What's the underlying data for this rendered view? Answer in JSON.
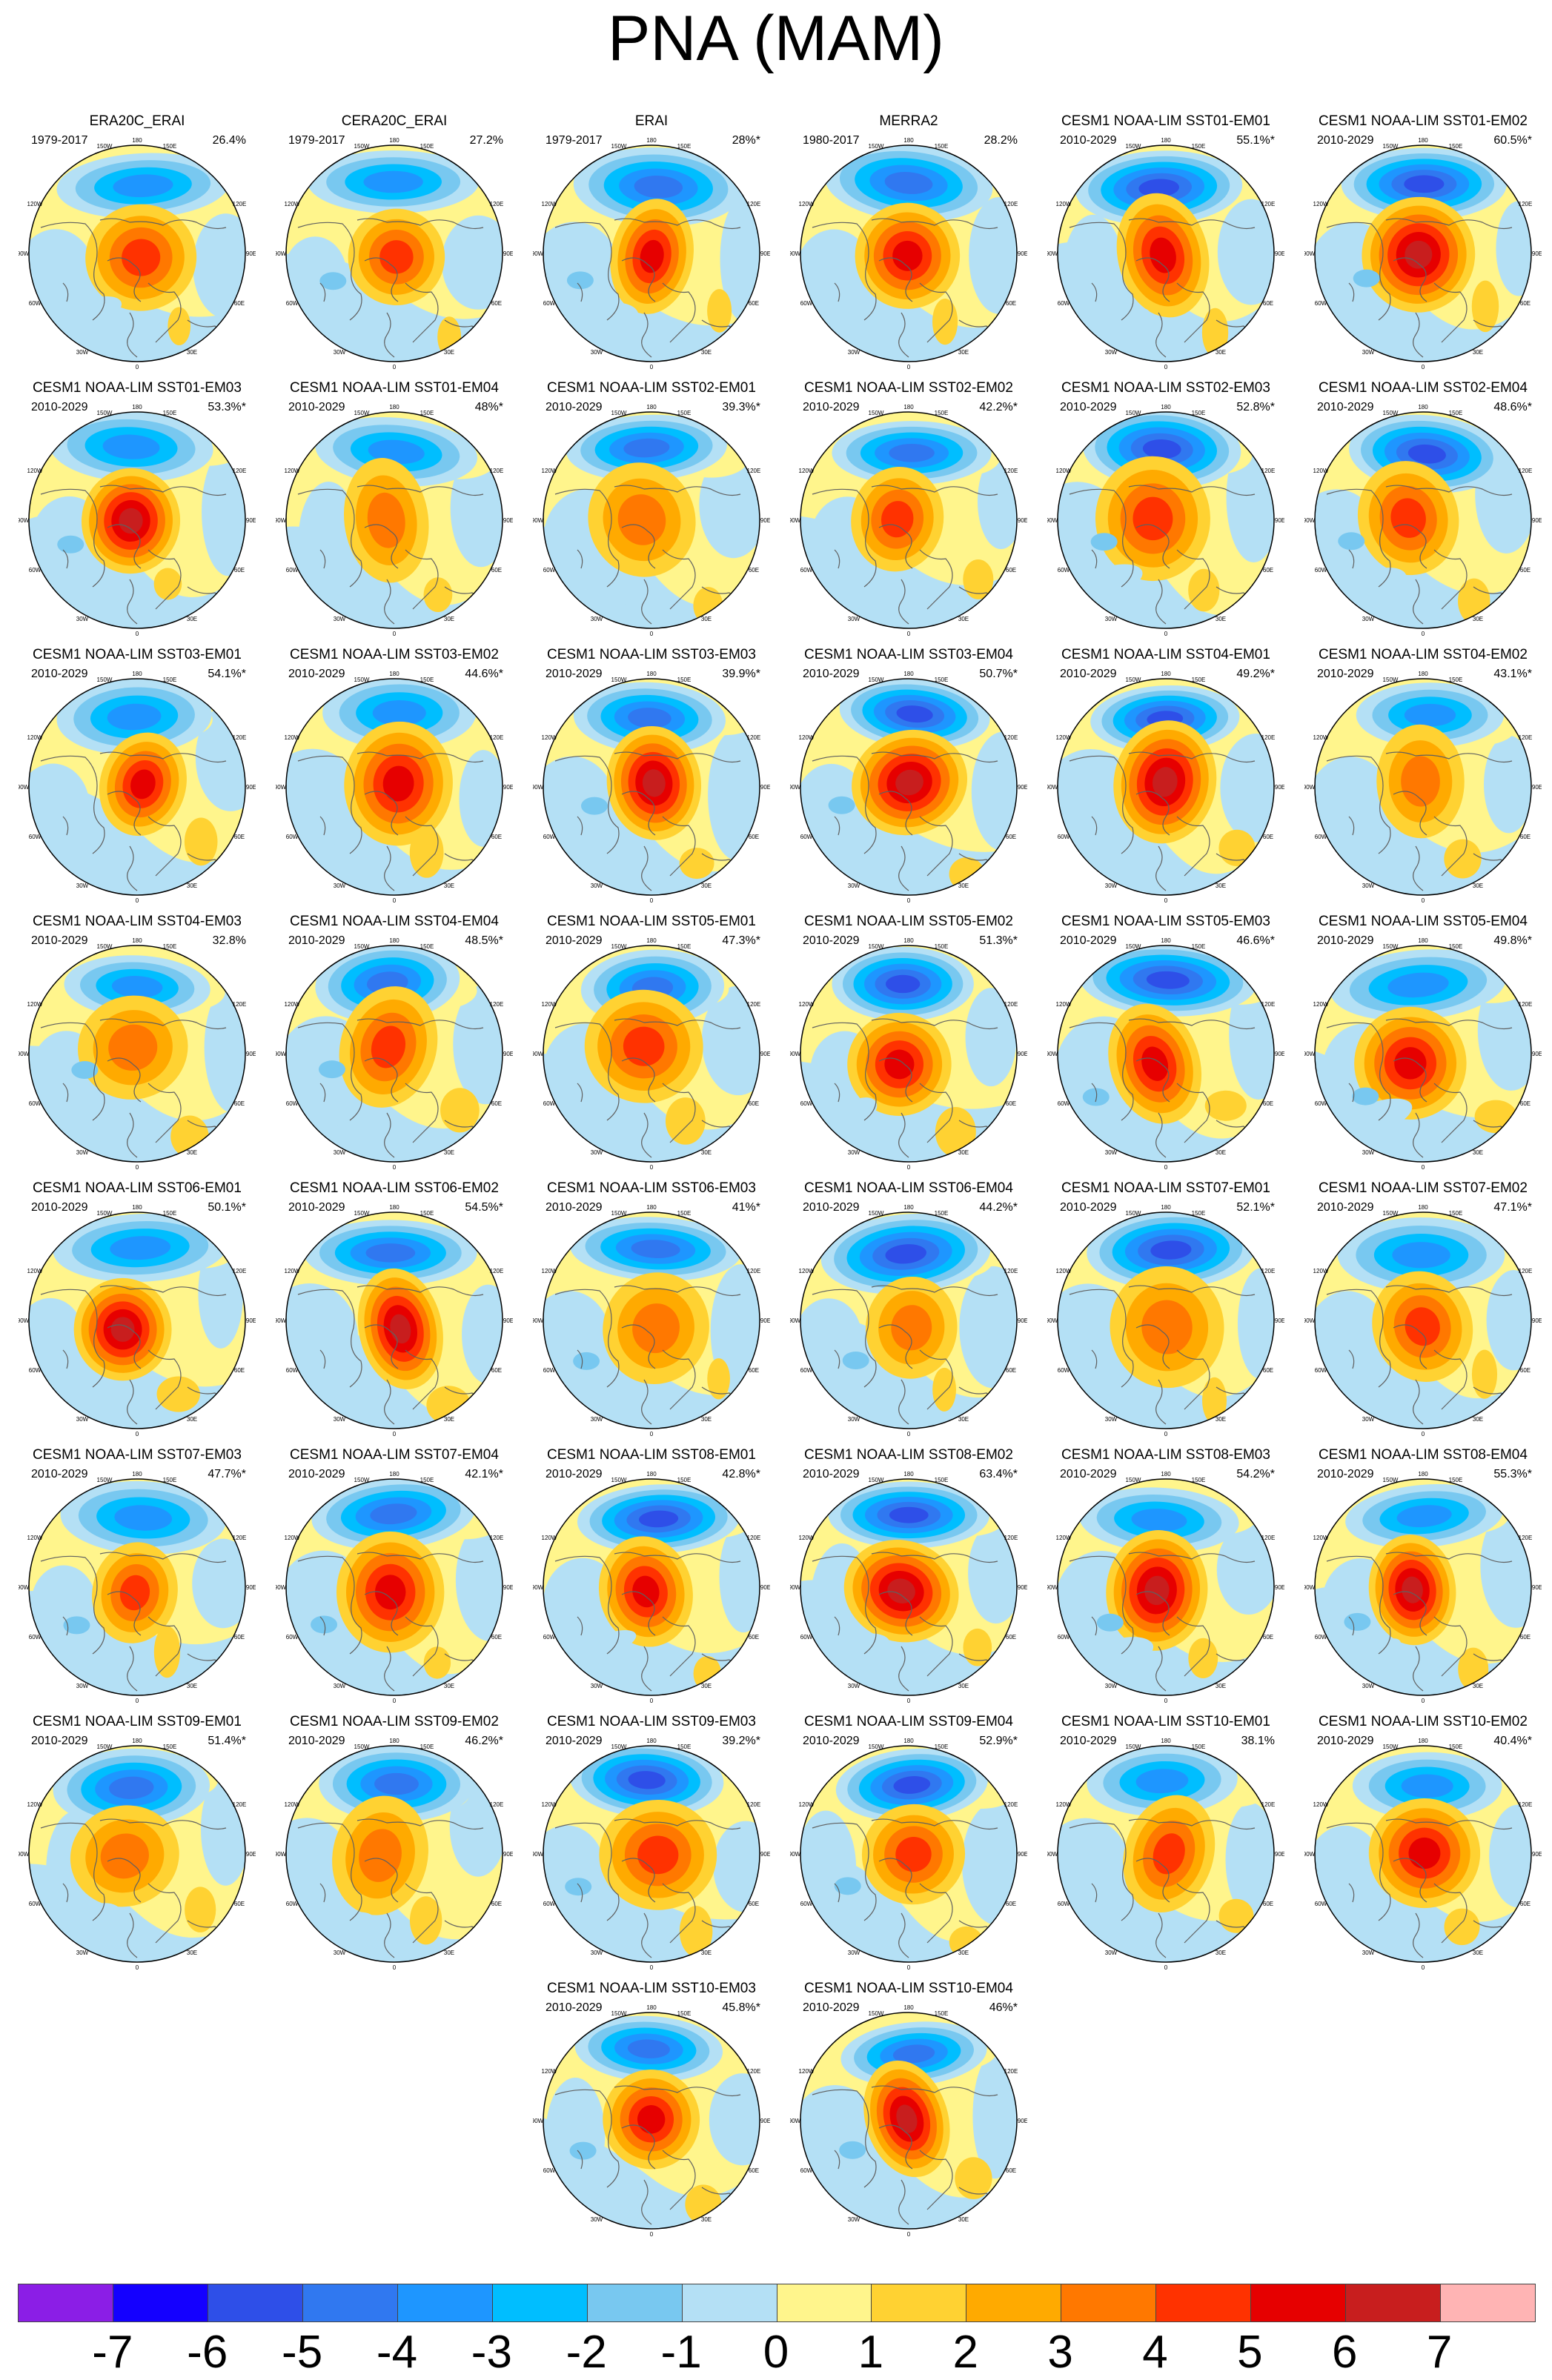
{
  "title": "PNA (MAM)",
  "panels": [
    {
      "title": "ERA20C_ERAI",
      "period": "1979-2017",
      "pct": "26.4%",
      "variant": 0
    },
    {
      "title": "CERA20C_ERAI",
      "period": "1979-2017",
      "pct": "27.2%",
      "variant": 1
    },
    {
      "title": "ERAI",
      "period": "1979-2017",
      "pct": "28%*",
      "variant": 2
    },
    {
      "title": "MERRA2",
      "period": "1980-2017",
      "pct": "28.2%",
      "variant": 3
    },
    {
      "title": "CESM1 NOAA-LIM SST01-EM01",
      "period": "2010-2029",
      "pct": "55.1%*",
      "variant": 4
    },
    {
      "title": "CESM1 NOAA-LIM SST01-EM02",
      "period": "2010-2029",
      "pct": "60.5%*",
      "variant": 5
    },
    {
      "title": "CESM1 NOAA-LIM SST01-EM03",
      "period": "2010-2029",
      "pct": "53.3%*",
      "variant": 6
    },
    {
      "title": "CESM1 NOAA-LIM SST01-EM04",
      "period": "2010-2029",
      "pct": "48%*",
      "variant": 7
    },
    {
      "title": "CESM1 NOAA-LIM SST02-EM01",
      "period": "2010-2029",
      "pct": "39.3%*",
      "variant": 8
    },
    {
      "title": "CESM1 NOAA-LIM SST02-EM02",
      "period": "2010-2029",
      "pct": "42.2%*",
      "variant": 9
    },
    {
      "title": "CESM1 NOAA-LIM SST02-EM03",
      "period": "2010-2029",
      "pct": "52.8%*",
      "variant": 10
    },
    {
      "title": "CESM1 NOAA-LIM SST02-EM04",
      "period": "2010-2029",
      "pct": "48.6%*",
      "variant": 11
    },
    {
      "title": "CESM1 NOAA-LIM SST03-EM01",
      "period": "2010-2029",
      "pct": "54.1%*",
      "variant": 12
    },
    {
      "title": "CESM1 NOAA-LIM SST03-EM02",
      "period": "2010-2029",
      "pct": "44.6%*",
      "variant": 13
    },
    {
      "title": "CESM1 NOAA-LIM SST03-EM03",
      "period": "2010-2029",
      "pct": "39.9%*",
      "variant": 14
    },
    {
      "title": "CESM1 NOAA-LIM SST03-EM04",
      "period": "2010-2029",
      "pct": "50.7%*",
      "variant": 15
    },
    {
      "title": "CESM1 NOAA-LIM SST04-EM01",
      "period": "2010-2029",
      "pct": "49.2%*",
      "variant": 16
    },
    {
      "title": "CESM1 NOAA-LIM SST04-EM02",
      "period": "2010-2029",
      "pct": "43.1%*",
      "variant": 17
    },
    {
      "title": "CESM1 NOAA-LIM SST04-EM03",
      "period": "2010-2029",
      "pct": "32.8%",
      "variant": 18
    },
    {
      "title": "CESM1 NOAA-LIM SST04-EM04",
      "period": "2010-2029",
      "pct": "48.5%*",
      "variant": 19
    },
    {
      "title": "CESM1 NOAA-LIM SST05-EM01",
      "period": "2010-2029",
      "pct": "47.3%*",
      "variant": 20
    },
    {
      "title": "CESM1 NOAA-LIM SST05-EM02",
      "period": "2010-2029",
      "pct": "51.3%*",
      "variant": 21
    },
    {
      "title": "CESM1 NOAA-LIM SST05-EM03",
      "period": "2010-2029",
      "pct": "46.6%*",
      "variant": 22
    },
    {
      "title": "CESM1 NOAA-LIM SST05-EM04",
      "period": "2010-2029",
      "pct": "49.8%*",
      "variant": 23
    },
    {
      "title": "CESM1 NOAA-LIM SST06-EM01",
      "period": "2010-2029",
      "pct": "50.1%*",
      "variant": 24
    },
    {
      "title": "CESM1 NOAA-LIM SST06-EM02",
      "period": "2010-2029",
      "pct": "54.5%*",
      "variant": 25
    },
    {
      "title": "CESM1 NOAA-LIM SST06-EM03",
      "period": "2010-2029",
      "pct": "41%*",
      "variant": 26
    },
    {
      "title": "CESM1 NOAA-LIM SST06-EM04",
      "period": "2010-2029",
      "pct": "44.2%*",
      "variant": 27
    },
    {
      "title": "CESM1 NOAA-LIM SST07-EM01",
      "period": "2010-2029",
      "pct": "52.1%*",
      "variant": 28
    },
    {
      "title": "CESM1 NOAA-LIM SST07-EM02",
      "period": "2010-2029",
      "pct": "47.1%*",
      "variant": 29
    },
    {
      "title": "CESM1 NOAA-LIM SST07-EM03",
      "period": "2010-2029",
      "pct": "47.7%*",
      "variant": 30
    },
    {
      "title": "CESM1 NOAA-LIM SST07-EM04",
      "period": "2010-2029",
      "pct": "42.1%*",
      "variant": 31
    },
    {
      "title": "CESM1 NOAA-LIM SST08-EM01",
      "period": "2010-2029",
      "pct": "42.8%*",
      "variant": 32
    },
    {
      "title": "CESM1 NOAA-LIM SST08-EM02",
      "period": "2010-2029",
      "pct": "63.4%*",
      "variant": 33
    },
    {
      "title": "CESM1 NOAA-LIM SST08-EM03",
      "period": "2010-2029",
      "pct": "54.2%*",
      "variant": 34
    },
    {
      "title": "CESM1 NOAA-LIM SST08-EM04",
      "period": "2010-2029",
      "pct": "55.3%*",
      "variant": 35
    },
    {
      "title": "CESM1 NOAA-LIM SST09-EM01",
      "period": "2010-2029",
      "pct": "51.4%*",
      "variant": 36
    },
    {
      "title": "CESM1 NOAA-LIM SST09-EM02",
      "period": "2010-2029",
      "pct": "46.2%*",
      "variant": 37
    },
    {
      "title": "CESM1 NOAA-LIM SST09-EM03",
      "period": "2010-2029",
      "pct": "39.2%*",
      "variant": 38
    },
    {
      "title": "CESM1 NOAA-LIM SST09-EM04",
      "period": "2010-2029",
      "pct": "52.9%*",
      "variant": 39
    },
    {
      "title": "CESM1 NOAA-LIM SST10-EM01",
      "period": "2010-2029",
      "pct": "38.1%",
      "variant": 40
    },
    {
      "title": "CESM1 NOAA-LIM SST10-EM02",
      "period": "2010-2029",
      "pct": "40.4%*",
      "variant": 41
    },
    {
      "title": "CESM1 NOAA-LIM SST10-EM03",
      "period": "2010-2029",
      "pct": "45.8%*",
      "variant": 42
    },
    {
      "title": "CESM1 NOAA-LIM SST10-EM04",
      "period": "2010-2029",
      "pct": "46%*",
      "variant": 43
    }
  ],
  "map_labels": {
    "lon_top": "180",
    "lon_bottom": "0",
    "lon_150w": "150W",
    "lon_150e": "150E",
    "lon_120w": "120W",
    "lon_120e": "120E",
    "lon_90w": "90W",
    "lon_90e": "90E",
    "lon_60w": "60W",
    "lon_60e": "60E",
    "lon_30w": "30W",
    "lon_30e": "30E"
  },
  "colorbar": {
    "colors": [
      "#8b1ee6",
      "#1400ff",
      "#2e4fe8",
      "#3078f0",
      "#1e96ff",
      "#00beff",
      "#78c8f0",
      "#b4e0f5",
      "#fff58c",
      "#ffd232",
      "#ffaa00",
      "#ff7800",
      "#ff3200",
      "#e60000",
      "#c81e1e",
      "#ffb4b4"
    ],
    "labels": [
      "-7",
      "-6",
      "-5",
      "-4",
      "-3",
      "-2",
      "-1",
      "0",
      "1",
      "2",
      "3",
      "4",
      "5",
      "6",
      "7"
    ]
  }
}
